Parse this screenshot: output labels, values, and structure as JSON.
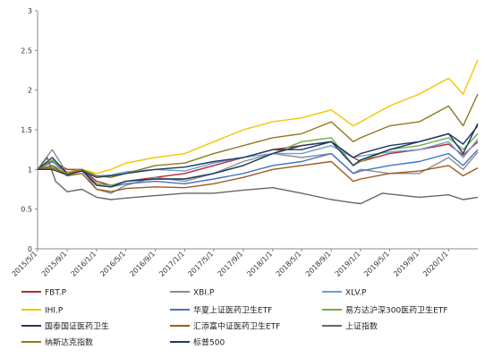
{
  "chart_data": {
    "type": "line",
    "title": "",
    "xlabel": "",
    "ylabel": "",
    "ylim": [
      0,
      3
    ],
    "y_ticks": [
      "0",
      "0.5",
      "1",
      "1.5",
      "2",
      "2.5",
      "3"
    ],
    "x_ticks": [
      "2015/5/1",
      "2015/9/1",
      "2016/1/1",
      "2016/5/1",
      "2016/9/1",
      "2017/1/1",
      "2017/5/1",
      "2017/9/1",
      "2018/1/1",
      "2018/5/1",
      "2018/9/1",
      "2019/1/1",
      "2019/5/1",
      "2019/9/1",
      "2020/1/1"
    ],
    "x_range": [
      "2015/5/1",
      "2020/5/1"
    ],
    "grid": false,
    "legend_placement": "bottom",
    "series": [
      {
        "name": "FBT.P",
        "color": "#c0272d",
        "x": [
          "2015/5/1",
          "2015/7/1",
          "2015/9/1",
          "2015/11/1",
          "2016/1/1",
          "2016/3/1",
          "2016/5/1",
          "2016/9/1",
          "2017/1/1",
          "2017/5/1",
          "2017/9/1",
          "2018/1/1",
          "2018/5/1",
          "2018/9/1",
          "2018/12/1",
          "2019/1/1",
          "2019/5/1",
          "2019/9/1",
          "2020/1/1",
          "2020/3/1",
          "2020/5/1"
        ],
        "values": [
          1.0,
          1.1,
          1.0,
          1.0,
          0.85,
          0.8,
          0.85,
          0.9,
          0.95,
          1.05,
          1.15,
          1.25,
          1.3,
          1.35,
          1.15,
          1.1,
          1.2,
          1.25,
          1.32,
          1.18,
          1.35
        ]
      },
      {
        "name": "XBI.P",
        "color": "#8c8c8c",
        "x": [
          "2015/5/1",
          "2015/7/1",
          "2015/9/1",
          "2015/11/1",
          "2016/1/1",
          "2016/3/1",
          "2016/5/1",
          "2016/9/1",
          "2017/1/1",
          "2017/5/1",
          "2017/9/1",
          "2018/1/1",
          "2018/5/1",
          "2018/9/1",
          "2018/12/1",
          "2019/1/1",
          "2019/5/1",
          "2019/9/1",
          "2020/1/1",
          "2020/3/1",
          "2020/5/1"
        ],
        "values": [
          1.0,
          1.25,
          0.95,
          1.0,
          0.75,
          0.7,
          0.8,
          0.9,
          0.85,
          0.95,
          1.1,
          1.2,
          1.15,
          1.2,
          0.95,
          1.0,
          0.95,
          0.95,
          1.15,
          1.0,
          1.22
        ]
      },
      {
        "name": "XLV.P",
        "color": "#6a9fd4",
        "x": [
          "2015/5/1",
          "2015/7/1",
          "2015/9/1",
          "2015/11/1",
          "2016/1/1",
          "2016/3/1",
          "2016/5/1",
          "2016/9/1",
          "2017/1/1",
          "2017/5/1",
          "2017/9/1",
          "2018/1/1",
          "2018/5/1",
          "2018/9/1",
          "2018/12/1",
          "2019/1/1",
          "2019/5/1",
          "2019/9/1",
          "2020/1/1",
          "2020/3/1",
          "2020/5/1"
        ],
        "values": [
          1.0,
          1.05,
          0.97,
          1.0,
          0.92,
          0.93,
          0.97,
          1.0,
          0.98,
          1.08,
          1.15,
          1.2,
          1.2,
          1.3,
          1.15,
          1.17,
          1.22,
          1.25,
          1.35,
          1.15,
          1.38
        ]
      },
      {
        "name": "IHI.P",
        "color": "#f5c400",
        "x": [
          "2015/5/1",
          "2015/7/1",
          "2015/9/1",
          "2015/11/1",
          "2016/1/1",
          "2016/3/1",
          "2016/5/1",
          "2016/9/1",
          "2017/1/1",
          "2017/5/1",
          "2017/9/1",
          "2018/1/1",
          "2018/5/1",
          "2018/9/1",
          "2018/12/1",
          "2019/1/1",
          "2019/5/1",
          "2019/9/1",
          "2020/1/1",
          "2020/3/1",
          "2020/5/1"
        ],
        "values": [
          1.0,
          1.03,
          0.97,
          1.0,
          0.95,
          1.0,
          1.08,
          1.15,
          1.2,
          1.35,
          1.5,
          1.6,
          1.65,
          1.75,
          1.55,
          1.6,
          1.8,
          1.95,
          2.15,
          1.95,
          2.38
        ]
      },
      {
        "name": "华夏上证医药卫生ETF",
        "color": "#4472c4",
        "x": [
          "2015/5/1",
          "2015/7/1",
          "2015/9/1",
          "2015/11/1",
          "2016/1/1",
          "2016/3/1",
          "2016/5/1",
          "2016/9/1",
          "2017/1/1",
          "2017/5/1",
          "2017/9/1",
          "2018/1/1",
          "2018/5/1",
          "2018/9/1",
          "2018/12/1",
          "2019/1/1",
          "2019/5/1",
          "2019/9/1",
          "2020/1/1",
          "2020/3/1",
          "2020/5/1"
        ],
        "values": [
          1.0,
          1.1,
          0.95,
          0.98,
          0.8,
          0.78,
          0.82,
          0.85,
          0.82,
          0.88,
          0.95,
          1.05,
          1.1,
          1.2,
          0.95,
          0.98,
          1.05,
          1.1,
          1.2,
          1.05,
          1.25
        ]
      },
      {
        "name": "易方达沪深300医药卫生ETF",
        "color": "#70ad47",
        "x": [
          "2015/5/1",
          "2015/7/1",
          "2015/9/1",
          "2015/11/1",
          "2016/1/1",
          "2016/3/1",
          "2016/5/1",
          "2016/9/1",
          "2017/1/1",
          "2017/5/1",
          "2017/9/1",
          "2018/1/1",
          "2018/5/1",
          "2018/9/1",
          "2018/12/1",
          "2019/1/1",
          "2019/5/1",
          "2019/9/1",
          "2020/1/1",
          "2020/3/1",
          "2020/5/1"
        ],
        "values": [
          1.0,
          1.12,
          0.95,
          1.0,
          0.82,
          0.8,
          0.85,
          0.88,
          0.88,
          0.95,
          1.05,
          1.2,
          1.35,
          1.4,
          1.05,
          1.1,
          1.25,
          1.3,
          1.4,
          1.25,
          1.45
        ]
      },
      {
        "name": "国泰国证医药卫生",
        "color": "#1f3864",
        "x": [
          "2015/5/1",
          "2015/7/1",
          "2015/9/1",
          "2015/11/1",
          "2016/1/1",
          "2016/3/1",
          "2016/5/1",
          "2016/9/1",
          "2017/1/1",
          "2017/5/1",
          "2017/9/1",
          "2018/1/1",
          "2018/5/1",
          "2018/9/1",
          "2018/12/1",
          "2019/1/1",
          "2019/5/1",
          "2019/9/1",
          "2020/1/1",
          "2020/3/1",
          "2020/5/1"
        ],
        "values": [
          1.0,
          1.15,
          0.95,
          1.0,
          0.8,
          0.78,
          0.85,
          0.88,
          0.88,
          0.95,
          1.05,
          1.2,
          1.3,
          1.35,
          1.05,
          1.12,
          1.25,
          1.35,
          1.45,
          1.32,
          1.55
        ]
      },
      {
        "name": "汇添富中证医药卫生ETF",
        "color": "#9e5a1f",
        "x": [
          "2015/5/1",
          "2015/7/1",
          "2015/9/1",
          "2015/11/1",
          "2016/1/1",
          "2016/3/1",
          "2016/5/1",
          "2016/9/1",
          "2017/1/1",
          "2017/5/1",
          "2017/9/1",
          "2018/1/1",
          "2018/5/1",
          "2018/9/1",
          "2018/12/1",
          "2019/1/1",
          "2019/5/1",
          "2019/9/1",
          "2020/1/1",
          "2020/3/1",
          "2020/5/1"
        ],
        "values": [
          1.0,
          1.05,
          0.92,
          0.95,
          0.75,
          0.72,
          0.76,
          0.78,
          0.77,
          0.82,
          0.9,
          1.0,
          1.05,
          1.1,
          0.85,
          0.88,
          0.95,
          0.98,
          1.05,
          0.92,
          1.02
        ]
      },
      {
        "name": "上证指数",
        "color": "#666666",
        "x": [
          "2015/5/1",
          "2015/6/10",
          "2015/7/15",
          "2015/9/1",
          "2015/11/1",
          "2016/1/1",
          "2016/3/1",
          "2016/5/1",
          "2016/9/1",
          "2017/1/1",
          "2017/5/1",
          "2017/9/1",
          "2018/1/1",
          "2018/5/1",
          "2018/9/1",
          "2018/12/1",
          "2019/1/1",
          "2019/4/1",
          "2019/9/1",
          "2020/1/1",
          "2020/3/1",
          "2020/5/1"
        ],
        "values": [
          1.0,
          1.15,
          0.85,
          0.72,
          0.75,
          0.65,
          0.62,
          0.64,
          0.67,
          0.7,
          0.7,
          0.74,
          0.77,
          0.7,
          0.62,
          0.58,
          0.57,
          0.7,
          0.65,
          0.68,
          0.62,
          0.65
        ]
      },
      {
        "name": "纳斯达克指数",
        "color": "#8e7a17",
        "x": [
          "2015/5/1",
          "2015/7/1",
          "2015/9/1",
          "2015/11/1",
          "2016/1/1",
          "2016/3/1",
          "2016/5/1",
          "2016/9/1",
          "2017/1/1",
          "2017/5/1",
          "2017/9/1",
          "2018/1/1",
          "2018/5/1",
          "2018/9/1",
          "2018/12/1",
          "2019/1/1",
          "2019/5/1",
          "2019/9/1",
          "2020/1/1",
          "2020/3/1",
          "2020/5/1"
        ],
        "values": [
          1.0,
          1.02,
          0.95,
          1.0,
          0.92,
          0.9,
          0.95,
          1.05,
          1.08,
          1.2,
          1.3,
          1.4,
          1.45,
          1.6,
          1.35,
          1.4,
          1.55,
          1.6,
          1.8,
          1.55,
          1.95
        ]
      },
      {
        "name": "标普500",
        "color": "#203864",
        "x": [
          "2015/5/1",
          "2015/7/1",
          "2015/9/1",
          "2015/11/1",
          "2016/1/1",
          "2016/3/1",
          "2016/5/1",
          "2016/9/1",
          "2017/1/1",
          "2017/5/1",
          "2017/9/1",
          "2018/1/1",
          "2018/5/1",
          "2018/9/1",
          "2018/12/1",
          "2019/1/1",
          "2019/5/1",
          "2019/9/1",
          "2020/1/1",
          "2020/3/1",
          "2020/5/1"
        ],
        "values": [
          1.0,
          1.0,
          0.93,
          0.98,
          0.9,
          0.92,
          0.95,
          1.0,
          1.03,
          1.1,
          1.15,
          1.25,
          1.25,
          1.35,
          1.15,
          1.2,
          1.3,
          1.35,
          1.45,
          1.2,
          1.58
        ]
      }
    ]
  }
}
